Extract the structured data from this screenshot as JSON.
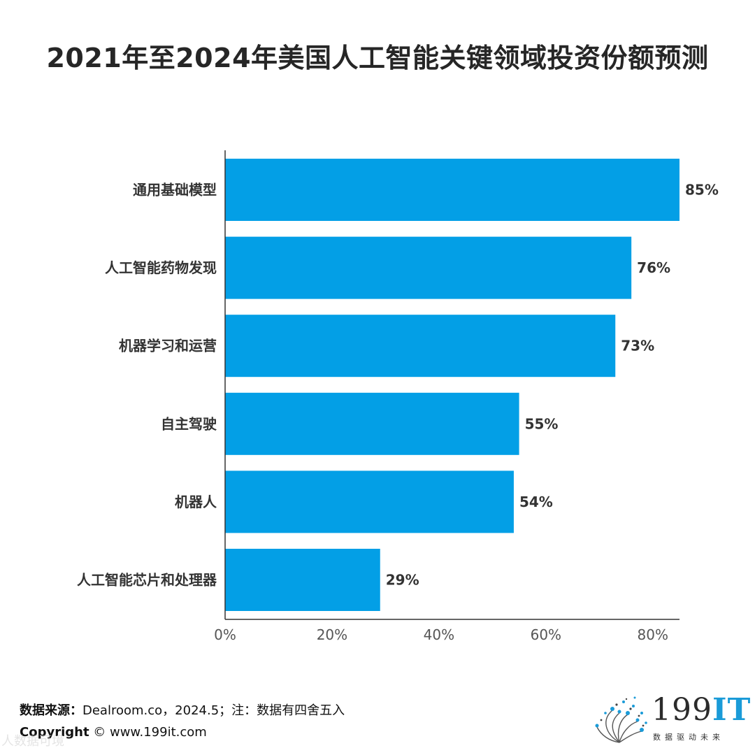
{
  "title": "2021年至2024年美国人工智能关键领域投资份额预测",
  "chart_data": {
    "type": "bar",
    "orientation": "horizontal",
    "title": "2021年至2024年美国人工智能关键领域投资份额预测",
    "categories": [
      "通用基础模型",
      "人工智能药物发现",
      "机器学习和运营",
      "自主驾驶",
      "机器人",
      "人工智能芯片和处理器"
    ],
    "values": [
      85,
      76,
      73,
      55,
      54,
      29
    ],
    "value_labels": [
      "85%",
      "76%",
      "73%",
      "55%",
      "54%",
      "29%"
    ],
    "xlim": [
      0,
      85
    ],
    "x_ticks": [
      0,
      20,
      40,
      60,
      80
    ],
    "x_tick_labels": [
      "0%",
      "20%",
      "40%",
      "60%",
      "80%"
    ],
    "bar_color": "#039FE6",
    "grid": false,
    "legend": "none"
  },
  "footer": {
    "source_label": "数据来源：",
    "source_text": "Dealroom.co，2024.5；注：数据有四舍五入",
    "copyright_label": "Copyright",
    "copyright_text": " ©  www.199it.com",
    "watermark": "人数据可境"
  },
  "logo": {
    "main": "199",
    "accent": "IT",
    "tagline": "数据驱动未来"
  }
}
